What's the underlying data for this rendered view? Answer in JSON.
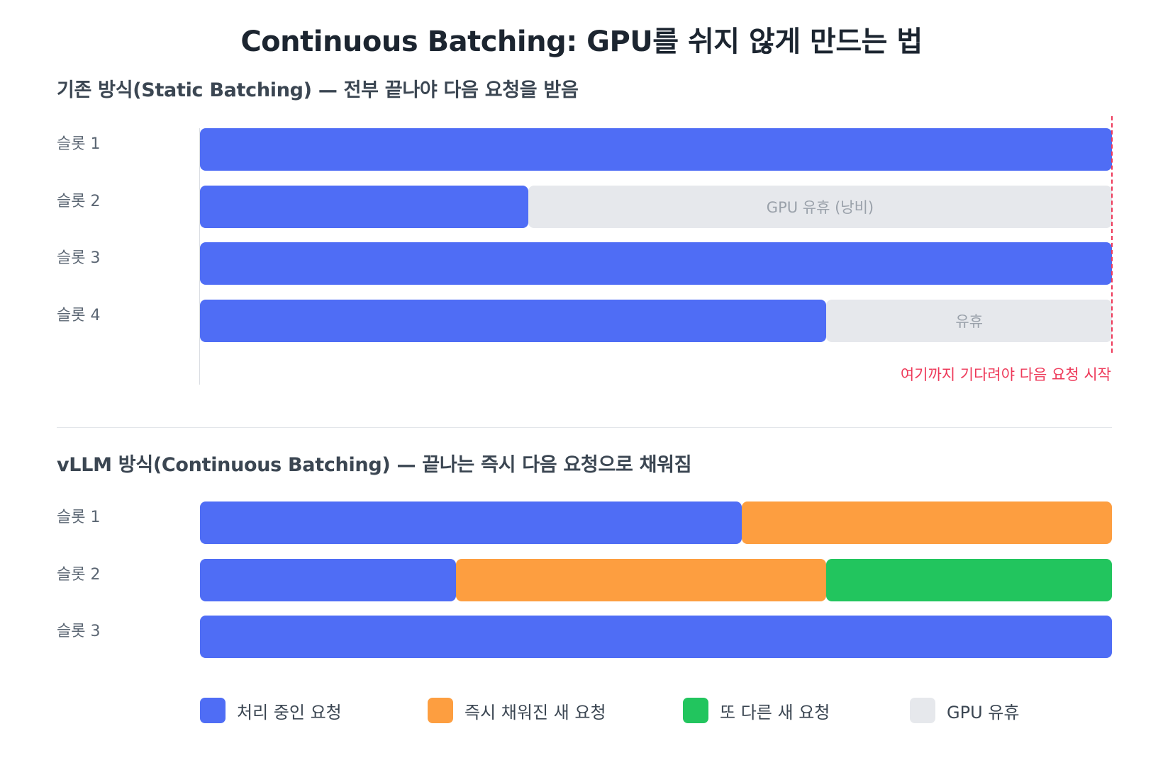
{
  "title": "Continuous Batching: GPU를 쉬지 않게 만드는 법",
  "colors": {
    "processing": "#4f6df5",
    "filled_new": "#fd9e40",
    "another_new": "#22c55e",
    "idle": "#e6e8ec",
    "deadline": "#ee3a5a"
  },
  "static": {
    "title": "기존 방식(Static Batching) — 전부 끝나야 다음 요청을 받음",
    "slots": [
      {
        "label": "슬롯 1",
        "segments": [
          {
            "kind": "processing",
            "start": 0,
            "end": 1.0,
            "text": ""
          }
        ]
      },
      {
        "label": "슬롯 2",
        "segments": [
          {
            "kind": "processing",
            "start": 0,
            "end": 0.36,
            "text": ""
          },
          {
            "kind": "idle",
            "start": 0.36,
            "end": 1.0,
            "text": "GPU 유휴 (낭비)"
          }
        ]
      },
      {
        "label": "슬롯 3",
        "segments": [
          {
            "kind": "processing",
            "start": 0,
            "end": 1.0,
            "text": ""
          }
        ]
      },
      {
        "label": "슬롯 4",
        "segments": [
          {
            "kind": "processing",
            "start": 0,
            "end": 0.687,
            "text": ""
          },
          {
            "kind": "idle",
            "start": 0.687,
            "end": 1.0,
            "text": "유휴"
          }
        ]
      }
    ],
    "deadline_label": "여기까지 기다려야 다음 요청 시작"
  },
  "continuous": {
    "title": "vLLM 방식(Continuous Batching) — 끝나는 즉시 다음 요청으로 채워짐",
    "slots": [
      {
        "label": "슬롯 1",
        "segments": [
          {
            "kind": "processing",
            "start": 0,
            "end": 0.594,
            "text": ""
          },
          {
            "kind": "filled_new",
            "start": 0.594,
            "end": 1.0,
            "text": ""
          }
        ]
      },
      {
        "label": "슬롯 2",
        "segments": [
          {
            "kind": "processing",
            "start": 0,
            "end": 0.281,
            "text": ""
          },
          {
            "kind": "filled_new",
            "start": 0.281,
            "end": 0.687,
            "text": ""
          },
          {
            "kind": "another_new",
            "start": 0.687,
            "end": 1.0,
            "text": ""
          }
        ]
      },
      {
        "label": "슬롯 3",
        "segments": [
          {
            "kind": "processing",
            "start": 0,
            "end": 1.0,
            "text": ""
          }
        ]
      }
    ]
  },
  "legend": [
    {
      "kind": "processing",
      "label": "처리 중인 요청"
    },
    {
      "kind": "filled_new",
      "label": "즉시 채워진 새 요청"
    },
    {
      "kind": "another_new",
      "label": "또 다른 새 요청"
    },
    {
      "kind": "idle",
      "label": "GPU 유휴"
    }
  ]
}
